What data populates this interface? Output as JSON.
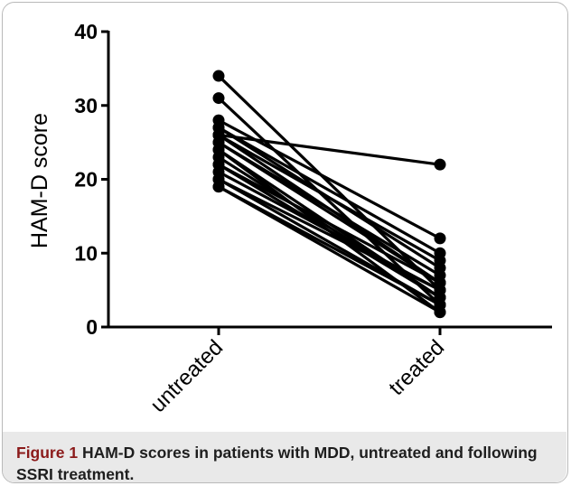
{
  "figure": {
    "caption_label": "Figure 1",
    "caption_text": "HAM-D scores in patients with MDD, untreated and following SSRI treatment."
  },
  "chart_data": {
    "type": "line",
    "title": "",
    "xlabel": "",
    "ylabel": "HAM-D score",
    "categories": [
      "untreated",
      "treated"
    ],
    "ylim": [
      0,
      40
    ],
    "yticks": [
      0,
      10,
      20,
      30,
      40
    ],
    "grid": false,
    "legend": "none",
    "colors": {
      "line": "#000000",
      "axis": "#000000"
    },
    "series": [
      {
        "values": [
          34,
          5
        ]
      },
      {
        "values": [
          31,
          3
        ]
      },
      {
        "values": [
          28,
          12
        ]
      },
      {
        "values": [
          27,
          10
        ]
      },
      {
        "values": [
          26,
          22
        ]
      },
      {
        "values": [
          26,
          9
        ]
      },
      {
        "values": [
          25,
          7
        ]
      },
      {
        "values": [
          24,
          4
        ]
      },
      {
        "values": [
          22,
          6
        ]
      },
      {
        "values": [
          21,
          5
        ]
      },
      {
        "values": [
          20,
          3
        ]
      },
      {
        "values": [
          19,
          2
        ]
      },
      {
        "values": [
          27,
          8
        ]
      },
      {
        "values": [
          25,
          6
        ]
      },
      {
        "values": [
          23,
          4
        ]
      },
      {
        "values": [
          20,
          5
        ]
      },
      {
        "values": [
          19,
          3
        ]
      },
      {
        "values": [
          24,
          2
        ]
      },
      {
        "values": [
          26,
          6
        ]
      },
      {
        "values": [
          22,
          4
        ]
      }
    ]
  }
}
